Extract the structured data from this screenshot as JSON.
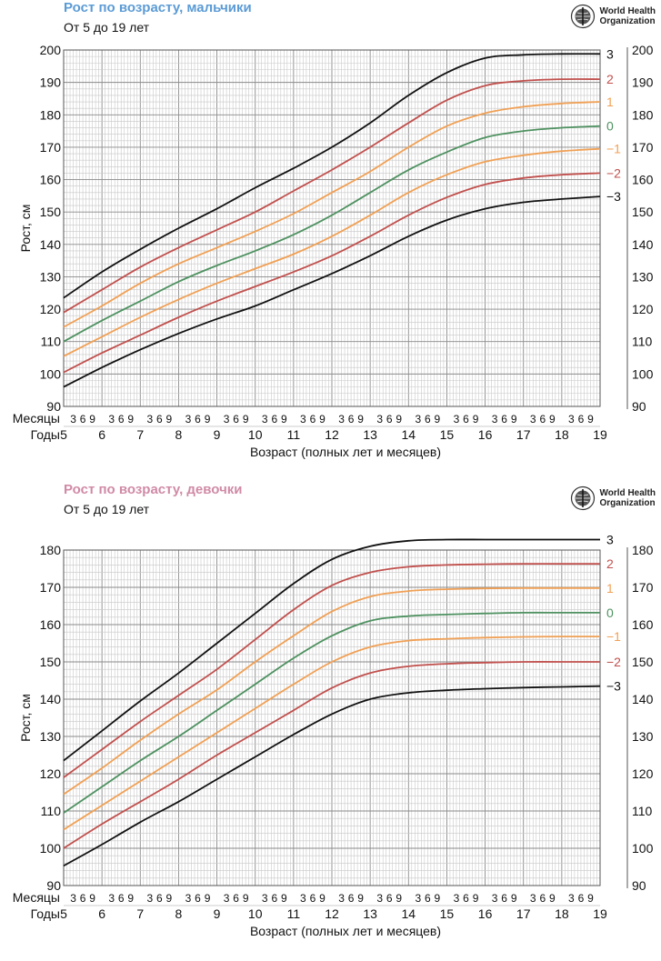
{
  "chart_data": [
    {
      "type": "line",
      "title": "Рост по возрасту, мальчики",
      "subtitle": "От 5 до 19 лет",
      "title_color": "#5b9bd5",
      "xlabel": "Возраст (полных лет и месяцев)",
      "ylabel": "Рост, см",
      "months_label": "Месяцы",
      "years_label": "Годы",
      "month_ticks": [
        "3",
        "6",
        "9"
      ],
      "years": [
        "5",
        "6",
        "7",
        "8",
        "9",
        "10",
        "11",
        "12",
        "13",
        "14",
        "15",
        "16",
        "17",
        "18",
        "19"
      ],
      "x": [
        5,
        6,
        7,
        8,
        9,
        10,
        11,
        12,
        13,
        14,
        15,
        16,
        17,
        18,
        19
      ],
      "xlim": [
        5,
        19
      ],
      "ylim": [
        90,
        200
      ],
      "yticks": [
        90,
        100,
        110,
        120,
        130,
        140,
        150,
        160,
        170,
        180,
        190,
        200
      ],
      "grid": true,
      "series": [
        {
          "name": "3",
          "color": "#111111",
          "values": [
            123.5,
            131.5,
            138.5,
            145,
            151,
            157.5,
            163.5,
            170,
            177.5,
            186,
            193,
            197.5,
            198.5,
            198.8,
            198.8
          ]
        },
        {
          "name": "2",
          "color": "#c0504d",
          "values": [
            119,
            126,
            133,
            139,
            144.5,
            150,
            156.5,
            163,
            170,
            177.5,
            184.5,
            189,
            190.5,
            191,
            191
          ]
        },
        {
          "name": "1",
          "color": "#f0a055",
          "values": [
            114.5,
            121,
            128,
            134,
            139,
            144,
            149.5,
            156,
            162.5,
            170,
            176.5,
            180.5,
            182.5,
            183.5,
            184
          ]
        },
        {
          "name": "0",
          "color": "#4e9160",
          "values": [
            110,
            116.5,
            122.5,
            128.5,
            133.5,
            138,
            143,
            149,
            156,
            163,
            168.5,
            173,
            175,
            176,
            176.5
          ]
        },
        {
          "name": "-1",
          "color": "#f0a055",
          "values": [
            105.5,
            111.5,
            117.5,
            123,
            128,
            132.5,
            137,
            142.5,
            149,
            156,
            161.5,
            165.5,
            167.5,
            168.8,
            169.5
          ]
        },
        {
          "name": "-2",
          "color": "#c0504d",
          "values": [
            100.5,
            106.5,
            112,
            117.5,
            122.5,
            127,
            131.5,
            136.5,
            142.5,
            149,
            154.5,
            158.5,
            160.5,
            161.5,
            162
          ]
        },
        {
          "name": "-3",
          "color": "#111111",
          "values": [
            96,
            102,
            107.5,
            112.5,
            117,
            121,
            126,
            131,
            136.5,
            142.5,
            147.5,
            151,
            153,
            154,
            154.8
          ]
        }
      ]
    },
    {
      "type": "line",
      "title": "Рост по возрасту, девочки",
      "subtitle": "От 5 до 19 лет",
      "title_color": "#d08aa6",
      "xlabel": "Возраст (полных лет и месяцев)",
      "ylabel": "Рост, см",
      "months_label": "Месяцы",
      "years_label": "Годы",
      "month_ticks": [
        "3",
        "6",
        "9"
      ],
      "years": [
        "5",
        "6",
        "7",
        "8",
        "9",
        "10",
        "11",
        "12",
        "13",
        "14",
        "15",
        "16",
        "17",
        "18",
        "19"
      ],
      "x": [
        5,
        6,
        7,
        8,
        9,
        10,
        11,
        12,
        13,
        14,
        15,
        16,
        17,
        18,
        19
      ],
      "xlim": [
        5,
        19
      ],
      "ylim": [
        90,
        180
      ],
      "yticks": [
        90,
        100,
        110,
        120,
        130,
        140,
        150,
        160,
        170,
        180
      ],
      "grid": true,
      "series": [
        {
          "name": "3",
          "color": "#111111",
          "values": [
            123.5,
            131.5,
            139.5,
            147,
            155,
            163,
            171,
            177.5,
            181,
            182.5,
            182.8,
            182.8,
            182.8,
            182.8,
            182.8
          ]
        },
        {
          "name": "2",
          "color": "#c0504d",
          "values": [
            119,
            126.5,
            134,
            141,
            148,
            156,
            164,
            170.5,
            174,
            175.5,
            176,
            176.2,
            176.3,
            176.3,
            176.3
          ]
        },
        {
          "name": "1",
          "color": "#f0a055",
          "values": [
            114.5,
            121.5,
            129,
            136,
            142.5,
            150,
            157,
            163.5,
            167.5,
            169,
            169.5,
            169.7,
            169.8,
            169.8,
            169.8
          ]
        },
        {
          "name": "0",
          "color": "#4e9160",
          "values": [
            109.5,
            116.5,
            123.5,
            130,
            137,
            144,
            151,
            157,
            161,
            162.3,
            162.7,
            163,
            163.2,
            163.2,
            163.2
          ]
        },
        {
          "name": "-1",
          "color": "#f0a055",
          "values": [
            105,
            111.5,
            118,
            124.5,
            131,
            137.5,
            144,
            150,
            154,
            155.7,
            156.2,
            156.5,
            156.7,
            156.8,
            156.8
          ]
        },
        {
          "name": "-2",
          "color": "#c0504d",
          "values": [
            100,
            106.5,
            112.5,
            118.5,
            125,
            131,
            137,
            143,
            147,
            148.8,
            149.5,
            149.8,
            150,
            150,
            150
          ]
        },
        {
          "name": "-3",
          "color": "#111111",
          "values": [
            95.3,
            101,
            107,
            112.5,
            118.5,
            124.5,
            130.5,
            136,
            140,
            141.7,
            142.4,
            142.8,
            143.1,
            143.3,
            143.5
          ]
        }
      ]
    }
  ],
  "logo": {
    "line1": "World Health",
    "line2": "Organization",
    "icon": "who-emblem-icon"
  }
}
